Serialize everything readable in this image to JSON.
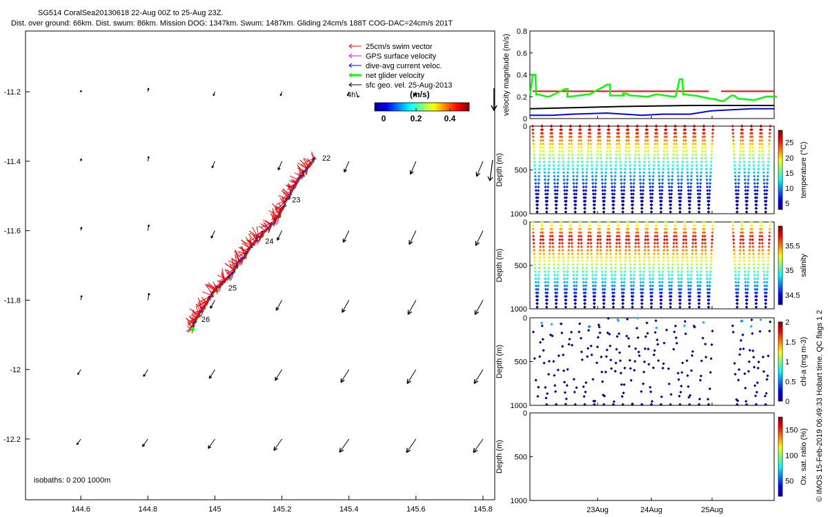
{
  "title": {
    "line1": "SG514 CoralSea20130618 22-Aug 00Z to 25-Aug 23Z.",
    "line2": "Dist. over ground: 66km. Dist. swum: 86km. Mission DOG: 1347km. Swum: 1487km. Gliding 24cm/s 188T COG-DAC=24cm/s 201T"
  },
  "side_label": "© IMOS 15-Feb-2019 06:49:33 Hobart time. QC flags 1  2",
  "map": {
    "x_ticks": [
      "144.6",
      "144.8",
      "145",
      "145.2",
      "145.4",
      "145.6",
      "145.8"
    ],
    "y_ticks": [
      "-11.2",
      "-11.4",
      "-11.6",
      "-11.8",
      "-12",
      "-12.2"
    ],
    "xlim": [
      144.435,
      145.835
    ],
    "ylim": [
      -12.375,
      -11.025
    ],
    "legend": [
      "25cm/s swim vector",
      "GPS surface velocity",
      "dive-avg current veloc.",
      "net glider velocity",
      "sfc geo. vel. 25-Aug-2013"
    ],
    "legend_colors": [
      "#ff0000",
      "#ff00ff",
      "#0000ff",
      "#00ff00",
      "#000000"
    ],
    "scale_label": "4h",
    "colorbar": {
      "title": "(m/s)",
      "ticks": [
        "0",
        "0.2",
        "0.4"
      ]
    },
    "day_labels": [
      {
        "text": "22",
        "lon": 145.32,
        "lat": -11.39
      },
      {
        "text": "23",
        "lon": 145.23,
        "lat": -11.51
      },
      {
        "text": "24",
        "lon": 145.15,
        "lat": -11.63
      },
      {
        "text": "25",
        "lon": 145.04,
        "lat": -11.765
      },
      {
        "text": "26",
        "lon": 144.96,
        "lat": -11.855
      }
    ],
    "isobaths": "isobaths: 0    200   1000m",
    "track": [
      [
        145.3,
        -11.39
      ],
      [
        145.25,
        -11.45
      ],
      [
        145.21,
        -11.52
      ],
      [
        145.18,
        -11.57
      ],
      [
        145.13,
        -11.62
      ],
      [
        145.09,
        -11.67
      ],
      [
        145.05,
        -11.72
      ],
      [
        145.0,
        -11.77
      ],
      [
        144.96,
        -11.83
      ],
      [
        144.93,
        -11.88
      ]
    ]
  },
  "panels": {
    "x_ticks": [
      "23Aug",
      "24Aug",
      "25Aug"
    ],
    "velocity": {
      "ylabel": "velocity magnitude (m/s)",
      "y_ticks": [
        "0",
        "0.2",
        "0.4",
        "0.6",
        "0.8"
      ],
      "ylim": [
        0,
        0.8
      ]
    },
    "temperature": {
      "clabel": "temperature (°C)",
      "c_ticks": [
        "5",
        "10",
        "15",
        "20",
        "25"
      ],
      "clim": [
        3,
        29
      ]
    },
    "salinity": {
      "clabel": "salinity",
      "c_ticks": [
        "34.5",
        "35",
        "35.5"
      ],
      "clim": [
        34.3,
        35.9
      ]
    },
    "chl": {
      "clabel": "chl-a (mg m-3)",
      "c_ticks": [
        "0",
        "0.5",
        "1",
        "1.5",
        "2"
      ],
      "clim": [
        0,
        2
      ]
    },
    "oxygen": {
      "clabel": "Ox. sat. ratio (%)",
      "c_ticks": [
        "50",
        "100",
        "150"
      ],
      "clim": [
        20,
        175
      ]
    },
    "depth_label": "Depth (m)",
    "depth_ticks": [
      "0",
      "500",
      "1000"
    ]
  },
  "chart_data": [
    {
      "type": "scatter",
      "title": "SG514 CoralSea20130618 22-Aug 00Z to 25-Aug 23Z.",
      "x_ticks": [
        "144.6",
        "144.8",
        "145",
        "145.2",
        "145.4",
        "145.6",
        "145.8"
      ],
      "y_ticks": [
        "-11.2",
        "-11.4",
        "-11.6",
        "-11.8",
        "-12",
        "-12.2"
      ],
      "legend": [
        "25cm/s swim vector",
        "GPS surface velocity",
        "dive-avg current veloc.",
        "net glider velocity",
        "sfc geo. vel. 25-Aug-2013"
      ]
    },
    {
      "type": "line",
      "ylabel": "velocity magnitude (m/s)",
      "ylim": [
        0,
        0.8
      ],
      "x_ticks": [
        "23Aug",
        "24Aug",
        "25Aug"
      ],
      "series": [
        {
          "values": [
            0.25,
            0.25
          ]
        },
        {
          "values": [
            0.22,
            0.18
          ]
        },
        {
          "values": [
            0.09,
            0.12
          ]
        },
        {
          "values": [
            0.03,
            0.09
          ]
        }
      ]
    },
    {
      "type": "scatter",
      "ylabel": "Depth (m)",
      "clabel": "temperature (°C)",
      "ylim": [
        1000,
        0
      ]
    },
    {
      "type": "scatter",
      "ylabel": "Depth (m)",
      "clabel": "salinity",
      "ylim": [
        1000,
        0
      ]
    },
    {
      "type": "scatter",
      "ylabel": "Depth (m)",
      "clabel": "chl-a (mg m-3)",
      "ylim": [
        1000,
        0
      ]
    },
    {
      "type": "scatter",
      "ylabel": "Depth (m)",
      "clabel": "Ox. sat. ratio (%)",
      "ylim": [
        1000,
        0
      ]
    }
  ]
}
